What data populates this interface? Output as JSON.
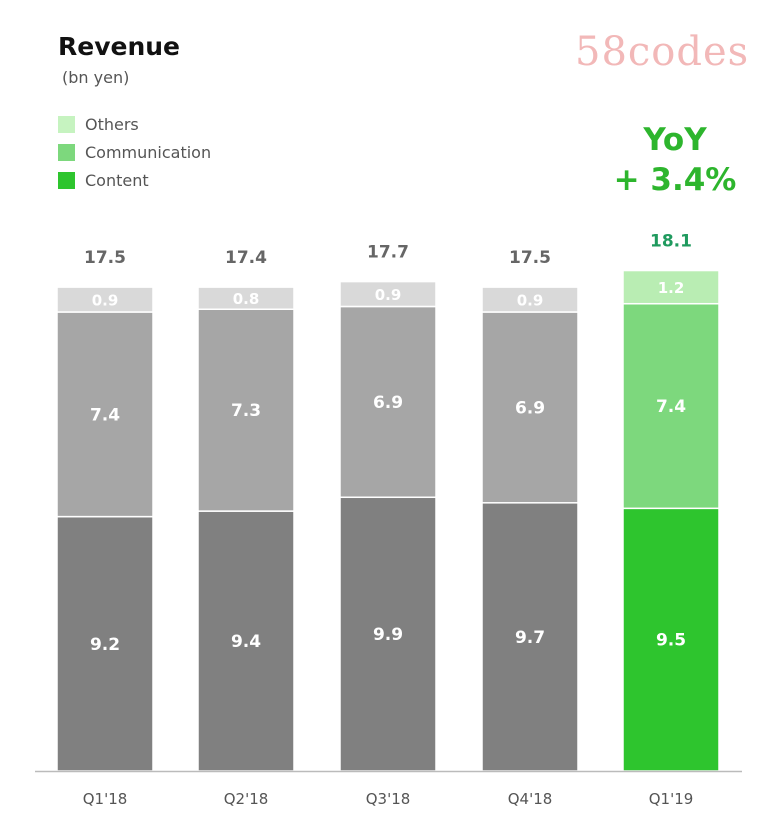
{
  "chart_data": {
    "type": "bar",
    "stacked": true,
    "title": "Revenue",
    "unit": "(bn yen)",
    "categories": [
      "Q1'18",
      "Q2'18",
      "Q3'18",
      "Q4'18",
      "Q1'19"
    ],
    "series": [
      {
        "name": "Content",
        "values": [
          9.2,
          9.4,
          9.9,
          9.7,
          9.5
        ]
      },
      {
        "name": "Communication",
        "values": [
          7.4,
          7.3,
          6.9,
          6.9,
          7.4
        ]
      },
      {
        "name": "Others",
        "values": [
          0.9,
          0.8,
          0.9,
          0.9,
          1.2
        ]
      }
    ],
    "totals": [
      "17.5",
      "17.4",
      "17.7",
      "17.5",
      "18.1"
    ],
    "legend": [
      "Others",
      "Communication",
      "Content"
    ],
    "legend_position": "top-left",
    "annotation": {
      "line1": "YoY",
      "line2": "+ 3.4%"
    },
    "grid": false,
    "ylim": [
      0,
      18.1
    ]
  },
  "colors": {
    "gray": [
      "#808080",
      "#a6a6a6",
      "#d9d9d9"
    ],
    "green": [
      "#2ec52e",
      "#7dd87d",
      "#b9edb3"
    ],
    "total_gray": "#666666",
    "total_green": "#1f9a5e",
    "yoy": "#2db52d"
  },
  "watermark": "58codes"
}
